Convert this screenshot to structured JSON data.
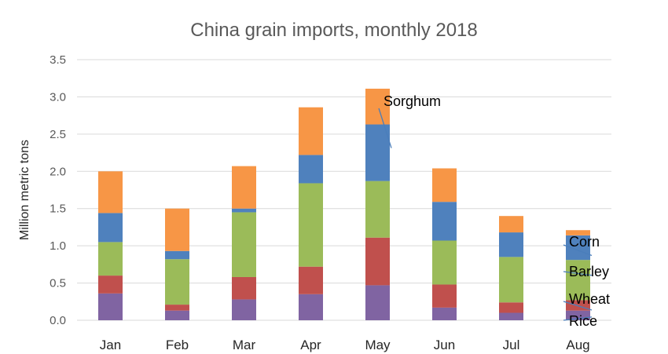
{
  "chart_data": {
    "type": "bar",
    "stacked": true,
    "title": "China grain imports, monthly 2018",
    "ylabel": "Million metric tons",
    "xlabel": "",
    "ylim": [
      0,
      3.5
    ],
    "yticks": [
      "0.0",
      "0.5",
      "1.0",
      "1.5",
      "2.0",
      "2.5",
      "3.0",
      "3.5"
    ],
    "grid": true,
    "legend": "none",
    "categories": [
      "Jan",
      "Feb",
      "Mar",
      "Apr",
      "May",
      "Jun",
      "Jul",
      "Aug"
    ],
    "series": [
      {
        "name": "Rice",
        "color": "#8064a2",
        "values": [
          0.36,
          0.13,
          0.28,
          0.35,
          0.47,
          0.17,
          0.1,
          0.13
        ]
      },
      {
        "name": "Wheat",
        "color": "#c0504d",
        "values": [
          0.24,
          0.08,
          0.3,
          0.37,
          0.64,
          0.31,
          0.14,
          0.14
        ]
      },
      {
        "name": "Barley",
        "color": "#9bbb59",
        "values": [
          0.45,
          0.61,
          0.87,
          1.12,
          0.76,
          0.59,
          0.61,
          0.54
        ]
      },
      {
        "name": "Corn",
        "color": "#4f81bd",
        "values": [
          0.39,
          0.11,
          0.05,
          0.38,
          0.76,
          0.52,
          0.33,
          0.33
        ]
      },
      {
        "name": "Sorghum",
        "color": "#f79646",
        "values": [
          0.56,
          0.57,
          0.57,
          0.64,
          0.48,
          0.45,
          0.22,
          0.07
        ]
      }
    ]
  }
}
